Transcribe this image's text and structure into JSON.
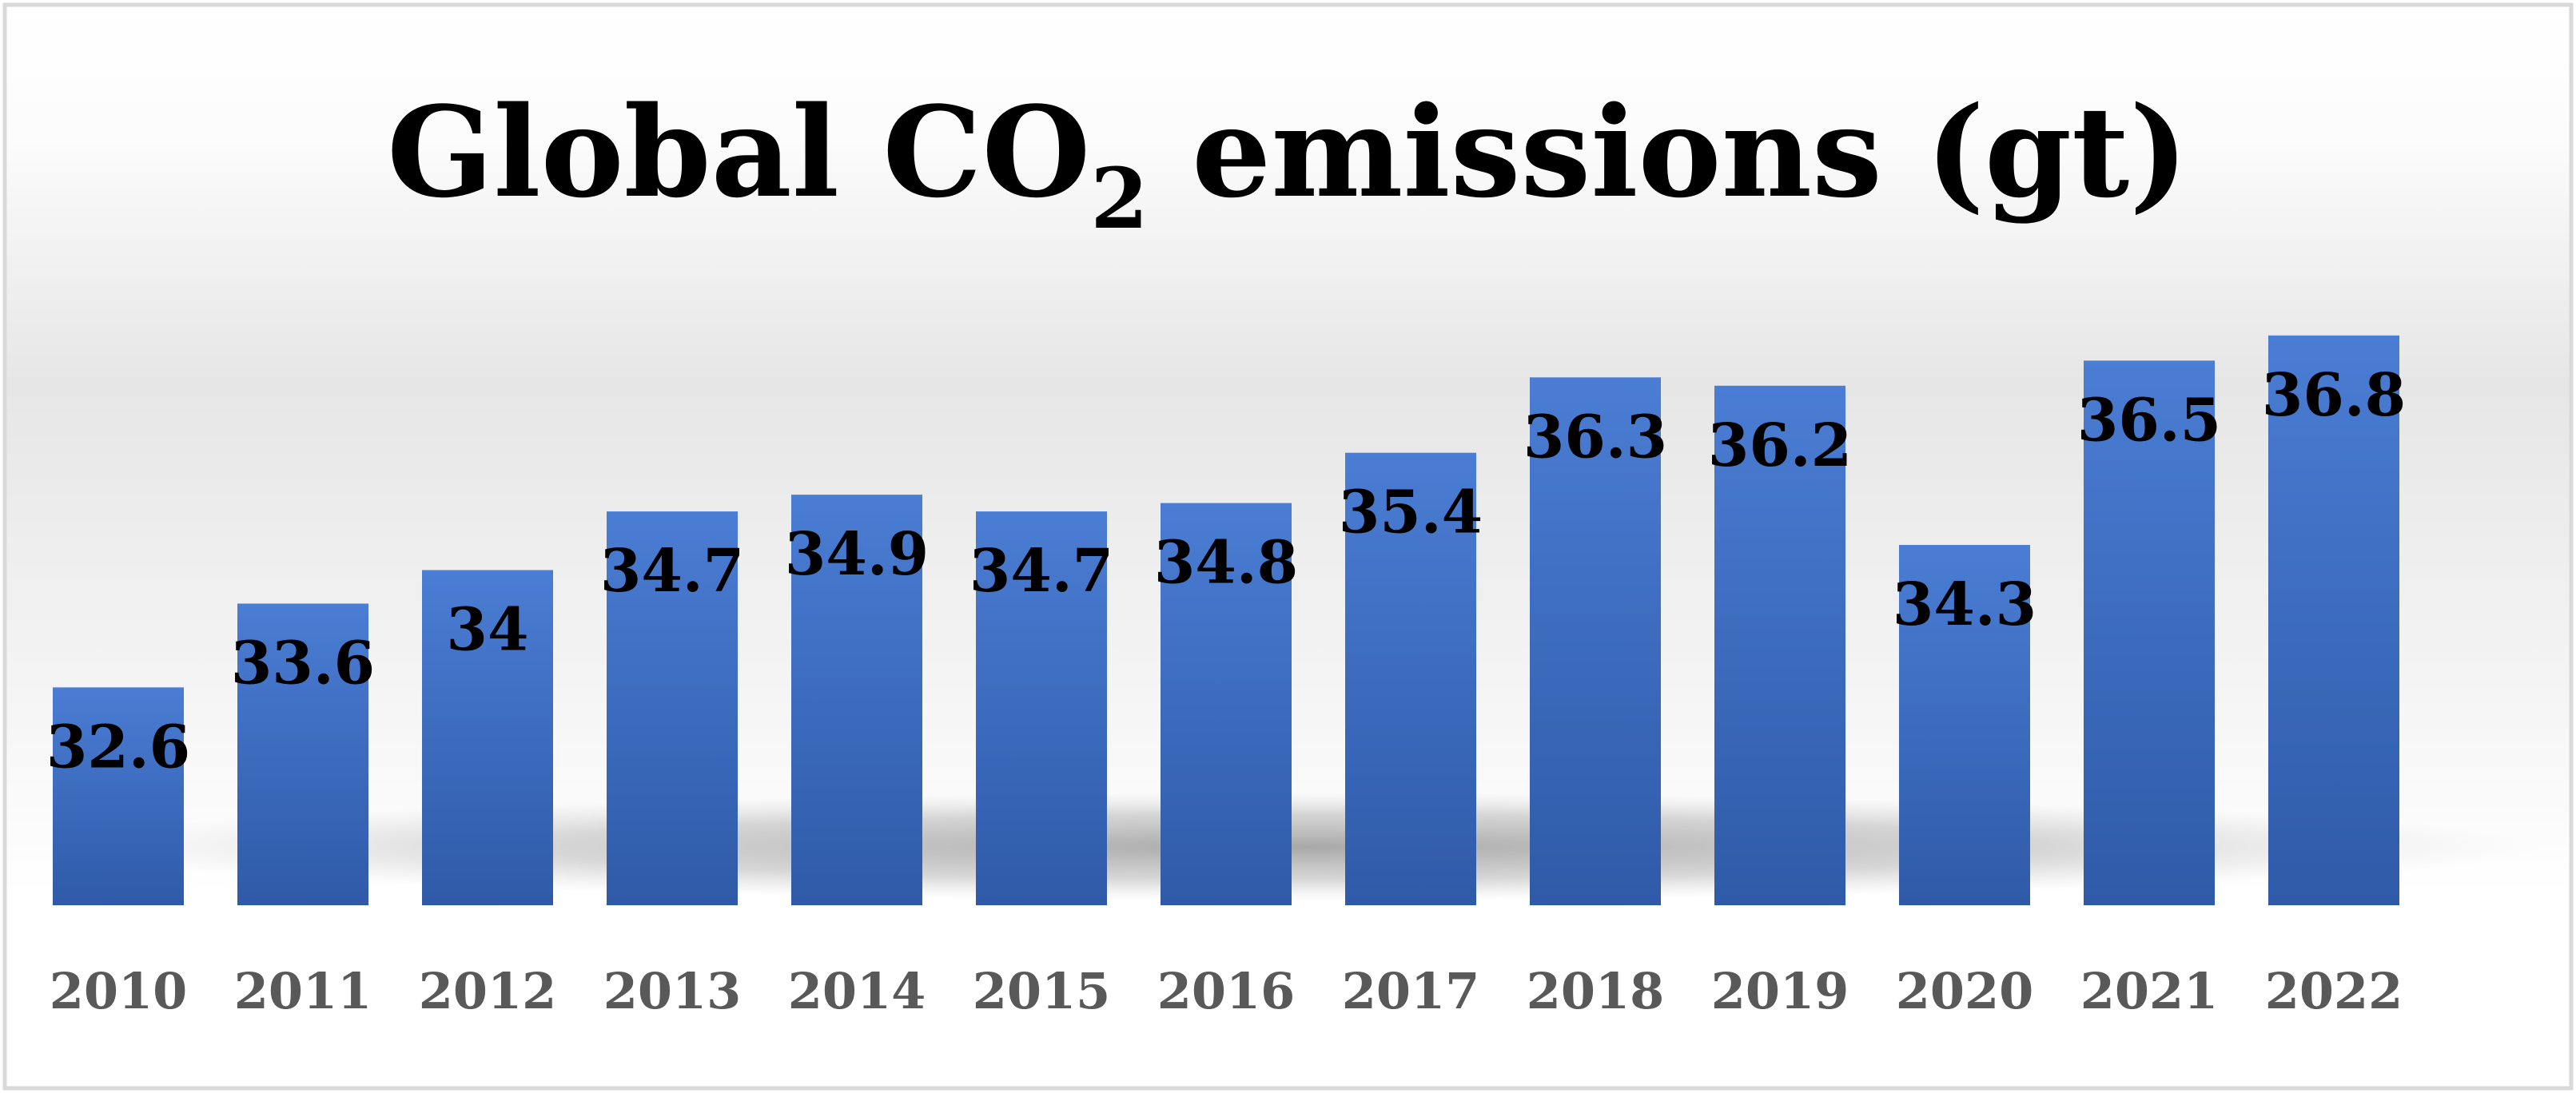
{
  "colors": {
    "bar_top": "#4a7dd4",
    "bar_bottom": "#2f5aa8",
    "frame_border": "#d9d9d9",
    "tick_text": "#595959",
    "label_text": "#000000"
  },
  "chart_data": {
    "type": "bar",
    "title": {
      "prefix": "Global CO",
      "subscript": "2",
      "suffix": " emissions (gt)"
    },
    "xlabel": "",
    "ylabel": "",
    "ylim": [
      30,
      37.8
    ],
    "grid": false,
    "legend": "none",
    "categories": [
      "2010",
      "2011",
      "2012",
      "2013",
      "2014",
      "2015",
      "2016",
      "2017",
      "2018",
      "2019",
      "2020",
      "2021",
      "2022"
    ],
    "values": [
      32.6,
      33.6,
      34,
      34.7,
      34.9,
      34.7,
      34.8,
      35.4,
      36.3,
      36.2,
      34.3,
      36.5,
      36.8
    ],
    "data_labels": [
      "32.6",
      "33.6",
      "34",
      "34.7",
      "34.9",
      "34.7",
      "34.8",
      "35.4",
      "36.3",
      "36.2",
      "34.3",
      "36.5",
      "36.8"
    ]
  }
}
